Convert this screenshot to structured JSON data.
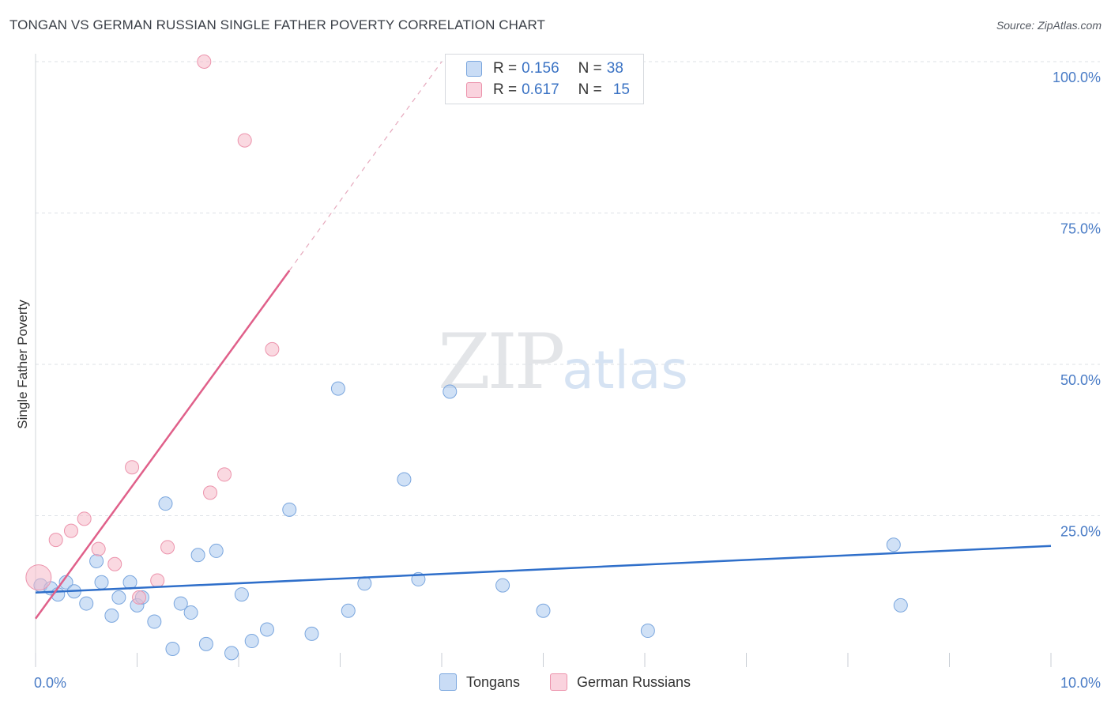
{
  "title": "TONGAN VS GERMAN RUSSIAN SINGLE FATHER POVERTY CORRELATION CHART",
  "source": "Source: ZipAtlas.com",
  "watermark": {
    "zip": "ZIP",
    "atlas": "atlas"
  },
  "legend": {
    "rows": [
      {
        "r_label": "R =",
        "r_value": "0.156",
        "n_label": "N =",
        "n_value": "38",
        "color": "#a9c8ef"
      },
      {
        "r_label": "R =",
        "r_value": "0.617",
        "n_label": "N =",
        "n_value": "15",
        "color": "#f6b9c9"
      }
    ]
  },
  "bottom_legend": [
    {
      "label": "Tongans",
      "color": "#a9c8ef"
    },
    {
      "label": "German Russians",
      "color": "#f6b9c9"
    }
  ],
  "chart_data": {
    "type": "scatter",
    "title": "TONGAN VS GERMAN RUSSIAN SINGLE FATHER POVERTY CORRELATION CHART",
    "xlabel": "",
    "ylabel": "Single Father Poverty",
    "xlim": [
      0,
      10
    ],
    "ylim": [
      0,
      100
    ],
    "x_tick_labels": [
      "0.0%",
      "10.0%"
    ],
    "y_ticks": [
      25,
      50,
      75,
      100
    ],
    "y_tick_labels": [
      "25.0%",
      "50.0%",
      "75.0%",
      "100.0%"
    ],
    "grid": true,
    "series": [
      {
        "name": "Tongans",
        "color": "#a9c8ef",
        "edge": "#7aa6de",
        "trend_color": "#2f6fca",
        "trend": {
          "x": [
            0,
            10
          ],
          "y": [
            12.3,
            20.0
          ]
        },
        "points": [
          {
            "x": 0.05,
            "y": 13.5
          },
          {
            "x": 0.15,
            "y": 13.0
          },
          {
            "x": 0.22,
            "y": 12.0
          },
          {
            "x": 0.3,
            "y": 14.0
          },
          {
            "x": 0.38,
            "y": 12.5
          },
          {
            "x": 0.5,
            "y": 10.5
          },
          {
            "x": 0.6,
            "y": 17.5
          },
          {
            "x": 0.65,
            "y": 14.0
          },
          {
            "x": 0.75,
            "y": 8.5
          },
          {
            "x": 0.82,
            "y": 11.5
          },
          {
            "x": 0.93,
            "y": 14.0
          },
          {
            "x": 1.0,
            "y": 10.2
          },
          {
            "x": 1.05,
            "y": 11.5
          },
          {
            "x": 1.17,
            "y": 7.5
          },
          {
            "x": 1.28,
            "y": 27.0
          },
          {
            "x": 1.35,
            "y": 3.0
          },
          {
            "x": 1.43,
            "y": 10.5
          },
          {
            "x": 1.53,
            "y": 9.0
          },
          {
            "x": 1.6,
            "y": 18.5
          },
          {
            "x": 1.68,
            "y": 3.8
          },
          {
            "x": 1.78,
            "y": 19.2
          },
          {
            "x": 1.93,
            "y": 2.3
          },
          {
            "x": 2.03,
            "y": 12.0
          },
          {
            "x": 2.13,
            "y": 4.3
          },
          {
            "x": 2.28,
            "y": 6.2
          },
          {
            "x": 2.5,
            "y": 26.0
          },
          {
            "x": 2.72,
            "y": 5.5
          },
          {
            "x": 2.98,
            "y": 46.0
          },
          {
            "x": 3.08,
            "y": 9.3
          },
          {
            "x": 3.24,
            "y": 13.8
          },
          {
            "x": 3.63,
            "y": 31.0
          },
          {
            "x": 3.77,
            "y": 14.5
          },
          {
            "x": 4.08,
            "y": 45.5
          },
          {
            "x": 4.6,
            "y": 13.5
          },
          {
            "x": 5.0,
            "y": 9.3
          },
          {
            "x": 6.03,
            "y": 6.0
          },
          {
            "x": 8.45,
            "y": 20.2
          },
          {
            "x": 8.52,
            "y": 10.2
          }
        ]
      },
      {
        "name": "German Russians",
        "color": "#f6b9c9",
        "edge": "#ec93ac",
        "trend_color": "#e0608a",
        "trend": {
          "x": [
            0,
            2.5
          ],
          "y": [
            8.0,
            65.5
          ]
        },
        "trend_dashed": {
          "x": [
            2.5,
            4.0
          ],
          "y": [
            65.5,
            100.0
          ]
        },
        "points": [
          {
            "x": 0.03,
            "y": 14.8
          },
          {
            "x": 0.2,
            "y": 21.0
          },
          {
            "x": 0.35,
            "y": 22.5
          },
          {
            "x": 0.48,
            "y": 24.5
          },
          {
            "x": 0.62,
            "y": 19.5
          },
          {
            "x": 0.78,
            "y": 17.0
          },
          {
            "x": 0.95,
            "y": 33.0
          },
          {
            "x": 1.02,
            "y": 11.5
          },
          {
            "x": 1.2,
            "y": 14.3
          },
          {
            "x": 1.3,
            "y": 19.8
          },
          {
            "x": 1.66,
            "y": 100.0
          },
          {
            "x": 1.72,
            "y": 28.8
          },
          {
            "x": 1.86,
            "y": 31.8
          },
          {
            "x": 2.06,
            "y": 87.0
          },
          {
            "x": 2.33,
            "y": 52.5
          }
        ]
      }
    ]
  }
}
